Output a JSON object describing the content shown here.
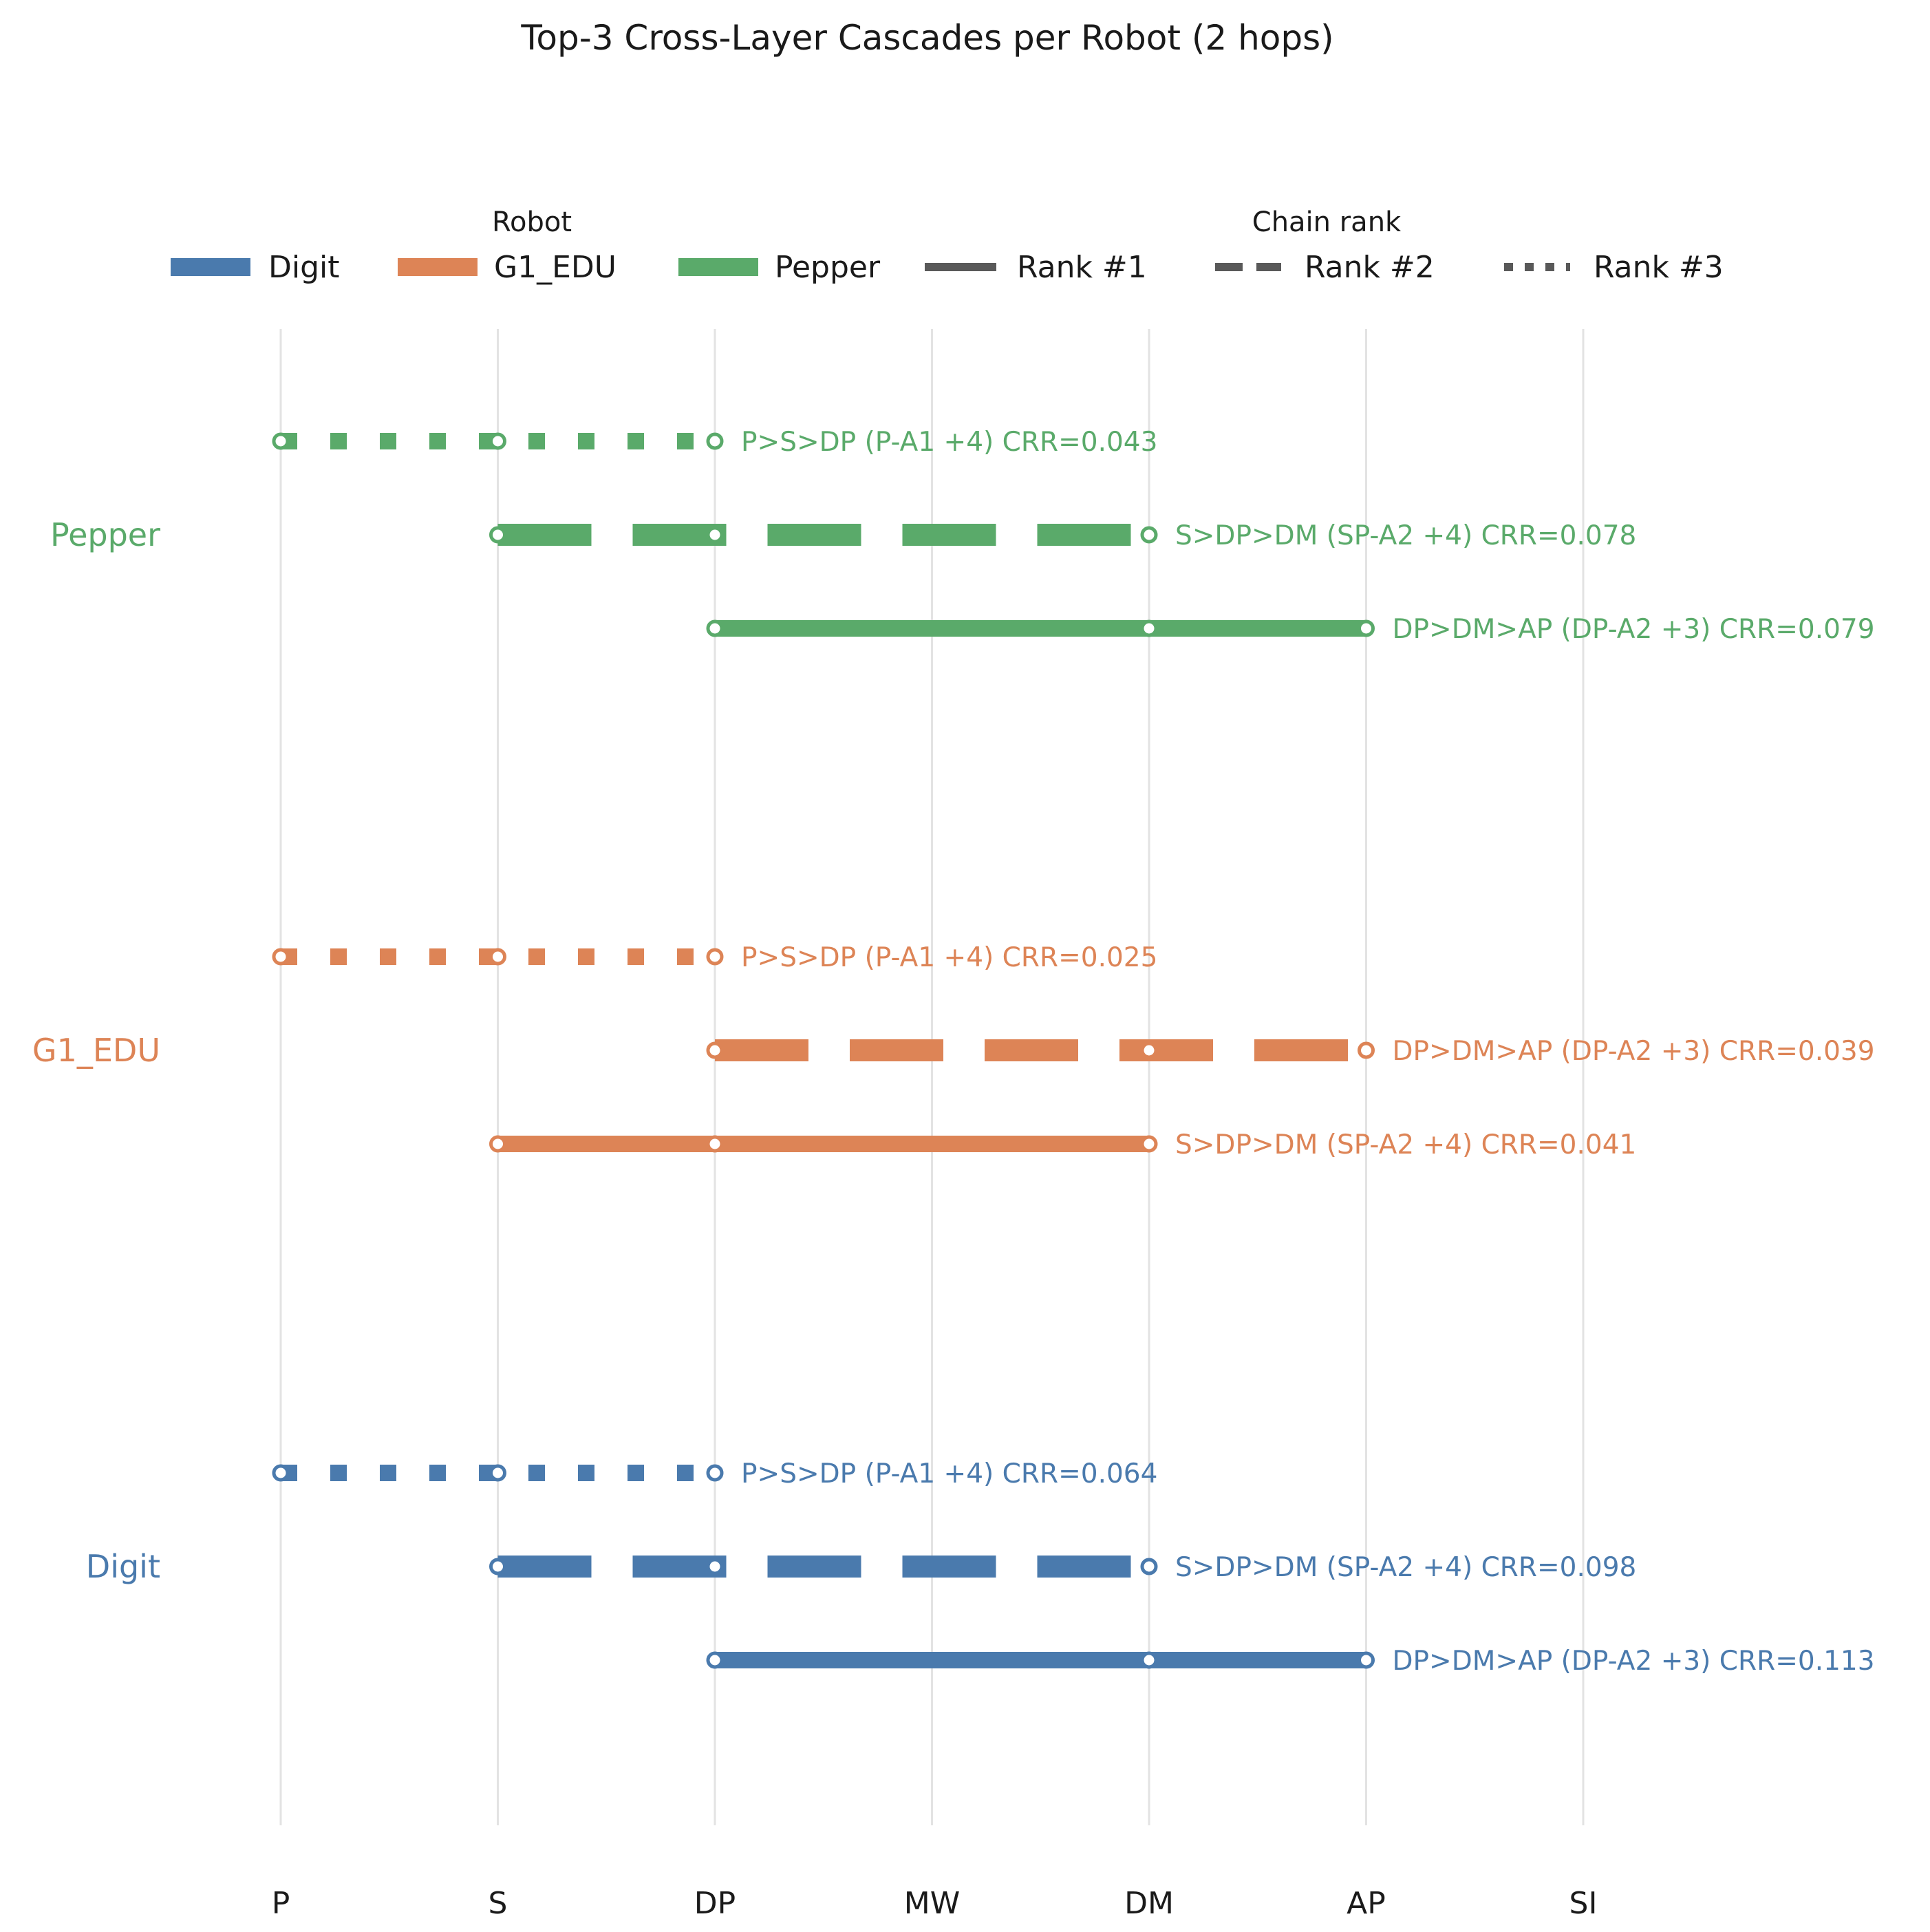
{
  "chart_data": {
    "type": "line",
    "title": "Top-3 Cross-Layer Cascades per Robot (2 hops)",
    "layers": [
      "P",
      "S",
      "DP",
      "MW",
      "DM",
      "AP",
      "SI"
    ],
    "legend": {
      "robot_title": "Robot",
      "rank_title": "Chain rank",
      "robots": [
        "Digit",
        "G1_EDU",
        "Pepper"
      ],
      "ranks": [
        "Rank #1",
        "Rank #2",
        "Rank #3"
      ],
      "placement": "top-center"
    },
    "colors": {
      "Digit": "#4a7aad",
      "G1_EDU": "#dd8456",
      "Pepper": "#5aaa6a",
      "rank_legend": "#595959",
      "grid": "#e3e3e3"
    },
    "grid": true,
    "robots": [
      {
        "name": "Digit",
        "chains": [
          {
            "rank": 3,
            "path": [
              "P",
              "S",
              "DP"
            ],
            "label": "P>S>DP (P-A1 +4)  CRR=0.064",
            "crr": 0.064
          },
          {
            "rank": 2,
            "path": [
              "S",
              "DP",
              "DM"
            ],
            "label": "S>DP>DM (SP-A2 +4)  CRR=0.098",
            "crr": 0.098
          },
          {
            "rank": 1,
            "path": [
              "DP",
              "DM",
              "AP"
            ],
            "label": "DP>DM>AP (DP-A2 +3)  CRR=0.113",
            "crr": 0.113
          }
        ]
      },
      {
        "name": "G1_EDU",
        "chains": [
          {
            "rank": 3,
            "path": [
              "P",
              "S",
              "DP"
            ],
            "label": "P>S>DP (P-A1 +4)  CRR=0.025",
            "crr": 0.025
          },
          {
            "rank": 2,
            "path": [
              "DP",
              "DM",
              "AP"
            ],
            "label": "DP>DM>AP (DP-A2 +3)  CRR=0.039",
            "crr": 0.039
          },
          {
            "rank": 1,
            "path": [
              "S",
              "DP",
              "DM"
            ],
            "label": "S>DP>DM (SP-A2 +4)  CRR=0.041",
            "crr": 0.041
          }
        ]
      },
      {
        "name": "Pepper",
        "chains": [
          {
            "rank": 3,
            "path": [
              "P",
              "S",
              "DP"
            ],
            "label": "P>S>DP (P-A1 +4)  CRR=0.043",
            "crr": 0.043
          },
          {
            "rank": 2,
            "path": [
              "S",
              "DP",
              "DM"
            ],
            "label": "S>DP>DM (SP-A2 +4)  CRR=0.078",
            "crr": 0.078
          },
          {
            "rank": 1,
            "path": [
              "DP",
              "DM",
              "AP"
            ],
            "label": "DP>DM>AP (DP-A2 +3)  CRR=0.079",
            "crr": 0.079
          }
        ]
      }
    ]
  }
}
